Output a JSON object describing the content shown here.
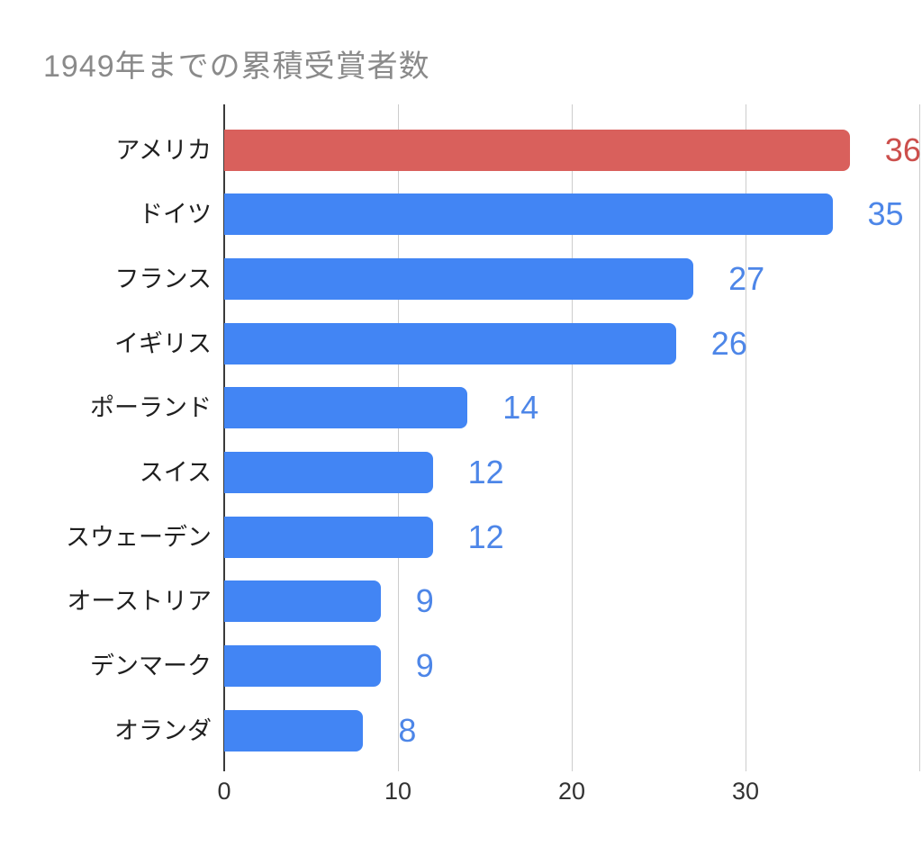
{
  "title": {
    "text": "1949年までの累積受賞者数",
    "color": "#8a8a8a"
  },
  "chart_data": {
    "type": "bar",
    "orientation": "horizontal",
    "title": "1949年までの累積受賞者数",
    "categories": [
      "アメリカ",
      "ドイツ",
      "フランス",
      "イギリス",
      "ポーランド",
      "スイス",
      "スウェーデン",
      "オーストリア",
      "デンマーク",
      "オランダ"
    ],
    "values": [
      36,
      35,
      27,
      26,
      14,
      12,
      12,
      9,
      9,
      8
    ],
    "bar_colors": [
      "#d9605c",
      "#4285f4",
      "#4285f4",
      "#4285f4",
      "#4285f4",
      "#4285f4",
      "#4285f4",
      "#4285f4",
      "#4285f4",
      "#4285f4"
    ],
    "value_label_colors": [
      "#cc4f4c",
      "#4d86e8",
      "#4d86e8",
      "#4d86e8",
      "#4d86e8",
      "#4d86e8",
      "#4d86e8",
      "#4d86e8",
      "#4d86e8",
      "#4d86e8"
    ],
    "data_labels_shown": true,
    "xlabel": "",
    "ylabel": "",
    "xlim": [
      0,
      40
    ],
    "xticks": [
      0,
      10,
      20,
      30
    ],
    "xtick_labels": [
      "0",
      "10",
      "20",
      "30"
    ],
    "gridline_values": [
      0,
      10,
      20,
      30,
      40
    ],
    "grid": true,
    "legend": "none",
    "gridline_color": "#cccccc",
    "axis_line_color": "#3a3a3a",
    "background_color": "#ffffff"
  }
}
